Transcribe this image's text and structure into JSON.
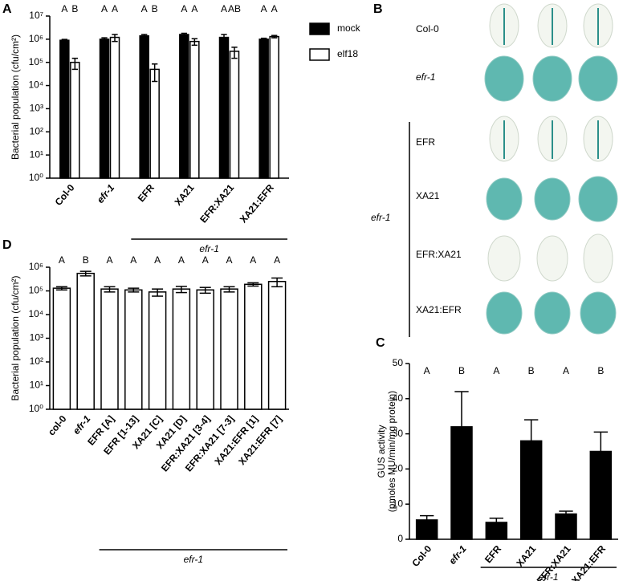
{
  "chart_data": [
    {
      "label": "A",
      "type": "bar",
      "ylabel": "Bacterial population (cfu/cm²)",
      "log_scale": true,
      "ylim": [
        1,
        10000000
      ],
      "yticks": [
        {
          "value": 1,
          "label": "10⁰"
        },
        {
          "value": 10,
          "label": "10¹"
        },
        {
          "value": 100,
          "label": "10²"
        },
        {
          "value": 1000,
          "label": "10³"
        },
        {
          "value": 10000,
          "label": "10⁴"
        },
        {
          "value": 100000,
          "label": "10⁵"
        },
        {
          "value": 1000000,
          "label": "10⁶"
        },
        {
          "value": 10000000,
          "label": "10⁷"
        }
      ],
      "categories": [
        "Col-0",
        "efr-1",
        "EFR",
        "XA21",
        "EFR:XA21",
        "XA21:EFR"
      ],
      "series": [
        {
          "name": "mock",
          "color": "#000000",
          "values": [
            900000,
            1000000,
            1400000,
            1600000,
            1200000,
            1000000
          ],
          "errors": [
            80000,
            150000,
            200000,
            200000,
            400000,
            100000
          ],
          "letters": [
            "A",
            "A",
            "A",
            "A",
            "A",
            "A"
          ]
        },
        {
          "name": "elf18",
          "color": "#ffffff",
          "values": [
            100000,
            1200000,
            50000,
            800000,
            300000,
            1300000
          ],
          "errors": [
            50000,
            400000,
            35000,
            250000,
            150000,
            150000
          ],
          "letters": [
            "B",
            "A",
            "B",
            "A",
            "AB",
            "A"
          ]
        }
      ],
      "group_label": "efr-1",
      "legend": "outside right"
    },
    {
      "label": "C",
      "type": "bar",
      "ylabel": [
        "GUS activity",
        "(pmoles MU/min/mg protein)"
      ],
      "log_scale": false,
      "ylim": [
        0,
        50
      ],
      "yticks": [
        0,
        10,
        20,
        30,
        40,
        50
      ],
      "categories": [
        "Col-0",
        "efr-1",
        "EFR",
        "XA21",
        "EFR:XA21",
        "XA21:EFR"
      ],
      "values": [
        5.5,
        32,
        4.8,
        28,
        7.2,
        25
      ],
      "errors": [
        1.2,
        10,
        1.2,
        6,
        0.8,
        5.5
      ],
      "color": "#000000",
      "letters": [
        "A",
        "B",
        "A",
        "B",
        "A",
        "B"
      ],
      "group_label": "efr-1"
    },
    {
      "label": "D",
      "type": "bar",
      "ylabel": "Bacterial population (cfu/cm²)",
      "log_scale": true,
      "ylim": [
        1,
        1000000
      ],
      "yticks": [
        {
          "value": 1,
          "label": "10⁰"
        },
        {
          "value": 10,
          "label": "10¹"
        },
        {
          "value": 100,
          "label": "10²"
        },
        {
          "value": 1000,
          "label": "10³"
        },
        {
          "value": 10000,
          "label": "10⁴"
        },
        {
          "value": 100000,
          "label": "10⁵"
        },
        {
          "value": 1000000,
          "label": "10⁶"
        }
      ],
      "categories": [
        "col-0",
        "efr-1",
        "EFR [A]",
        "EFR [1-13]",
        "XA21 [C]",
        "XA21 [D]",
        "EFR:XA21 [3-4]",
        "EFR:XA21 [7-3]",
        "XA21:EFR [1]",
        "XA21:EFR [7]"
      ],
      "values": [
        130000,
        550000,
        120000,
        110000,
        90000,
        120000,
        110000,
        120000,
        190000,
        250000
      ],
      "errors": [
        20000,
        120000,
        30000,
        20000,
        30000,
        35000,
        30000,
        30000,
        30000,
        100000
      ],
      "color": "#ffffff",
      "letters": [
        "A",
        "B",
        "A",
        "A",
        "A",
        "A",
        "A",
        "A",
        "A",
        "A"
      ],
      "group_label": "efr-1"
    }
  ],
  "image_panel": {
    "label": "B",
    "rows": [
      "Col-0",
      "efr-1",
      "EFR",
      "XA21",
      "EFR:XA21",
      "XA21:EFR"
    ],
    "group_label": "efr-1"
  }
}
